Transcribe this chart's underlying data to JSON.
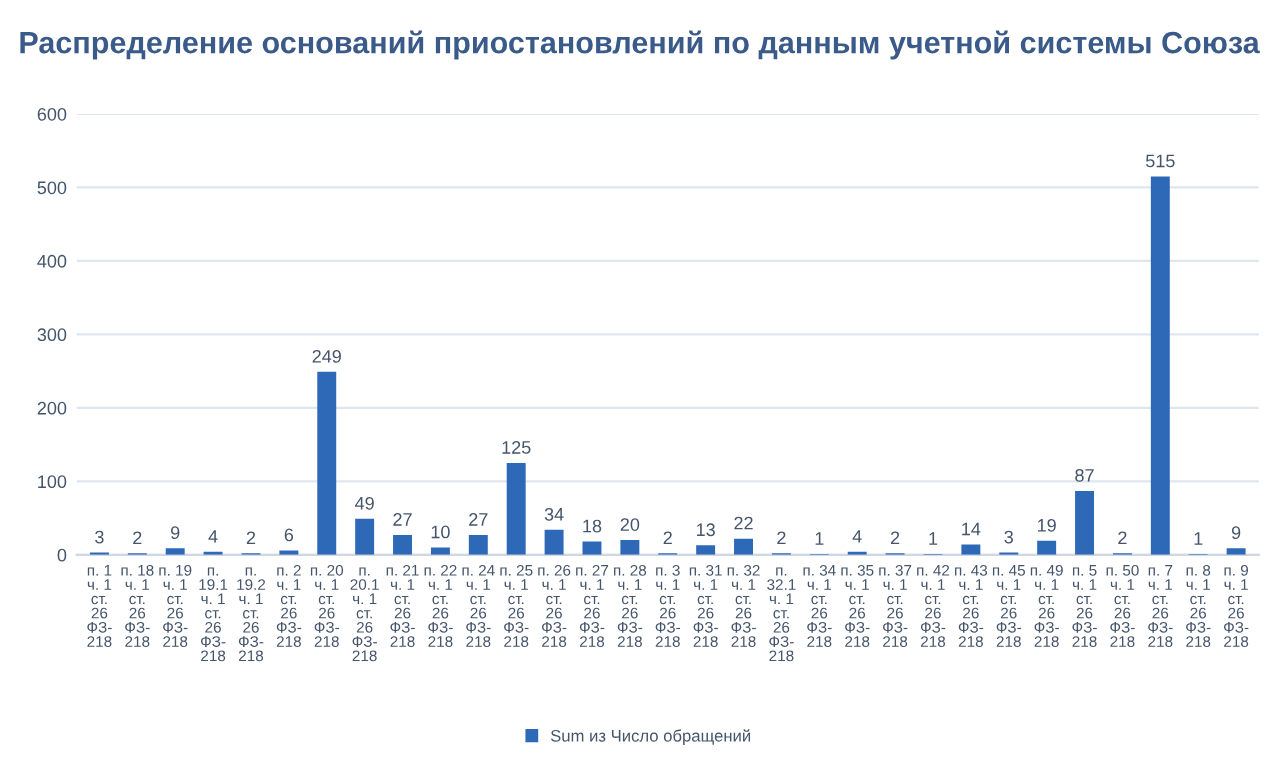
{
  "chart_data": {
    "type": "bar",
    "title": "Распределение оснований приостановлений по данным учетной системы Союза",
    "categories": [
      "п. 1 ч. 1 ст. 26 ФЗ-218",
      "п. 18 ч. 1 ст. 26 ФЗ-218",
      "п. 19 ч. 1 ст. 26 ФЗ-218",
      "п. 19.1 ч. 1 ст. 26 ФЗ-218",
      "п. 19.2 ч. 1 ст. 26 ФЗ-218",
      "п. 2 ч. 1 ст. 26 ФЗ-218",
      "п. 20 ч. 1 ст. 26 ФЗ-218",
      "п. 20.1 ч. 1 ст. 26 ФЗ-218",
      "п. 21 ч. 1 ст. 26 ФЗ-218",
      "п. 22 ч. 1 ст. 26 ФЗ-218",
      "п. 24 ч. 1 ст. 26 ФЗ-218",
      "п. 25 ч. 1 ст. 26 ФЗ-218",
      "п. 26 ч. 1 ст. 26 ФЗ-218",
      "п. 27 ч. 1 ст. 26 ФЗ-218",
      "п. 28 ч. 1 ст. 26 ФЗ-218",
      "п. 3 ч. 1 ст. 26 ФЗ-218",
      "п. 31 ч. 1 ст. 26 ФЗ-218",
      "п. 32 ч. 1 ст. 26 ФЗ-218",
      "п. 32.1 ч. 1 ст. 26 ФЗ-218",
      "п. 34 ч. 1 ст. 26 ФЗ-218",
      "п. 35 ч. 1 ст. 26 ФЗ-218",
      "п. 37 ч. 1 ст. 26 ФЗ-218",
      "п. 42 ч. 1 ст. 26 ФЗ-218",
      "п. 43 ч. 1 ст. 26 ФЗ-218",
      "п. 45 ч. 1 ст. 26 ФЗ-218",
      "п. 49 ч. 1 ст. 26 ФЗ-218",
      "п. 5 ч. 1 ст. 26 ФЗ-218",
      "п. 50 ч. 1 ст. 26 ФЗ-218",
      "п. 7 ч. 1 ст. 26 ФЗ-218",
      "п. 8 ч. 1 ст. 26 ФЗ-218",
      "п. 9 ч. 1 ст. 26 ФЗ-218"
    ],
    "series": [
      {
        "name": "Sum из Число обращений",
        "color": "#2e69b8",
        "values": [
          3,
          2,
          9,
          4,
          2,
          6,
          249,
          49,
          27,
          10,
          27,
          125,
          34,
          18,
          20,
          2,
          13,
          22,
          2,
          1,
          4,
          2,
          1,
          14,
          3,
          19,
          87,
          2,
          515,
          1,
          9
        ]
      }
    ],
    "ylim": [
      0,
      600
    ],
    "yticks": [
      0,
      100,
      200,
      300,
      400,
      500,
      600
    ],
    "grid": "y",
    "legend": "bottom",
    "data_labels": true
  }
}
